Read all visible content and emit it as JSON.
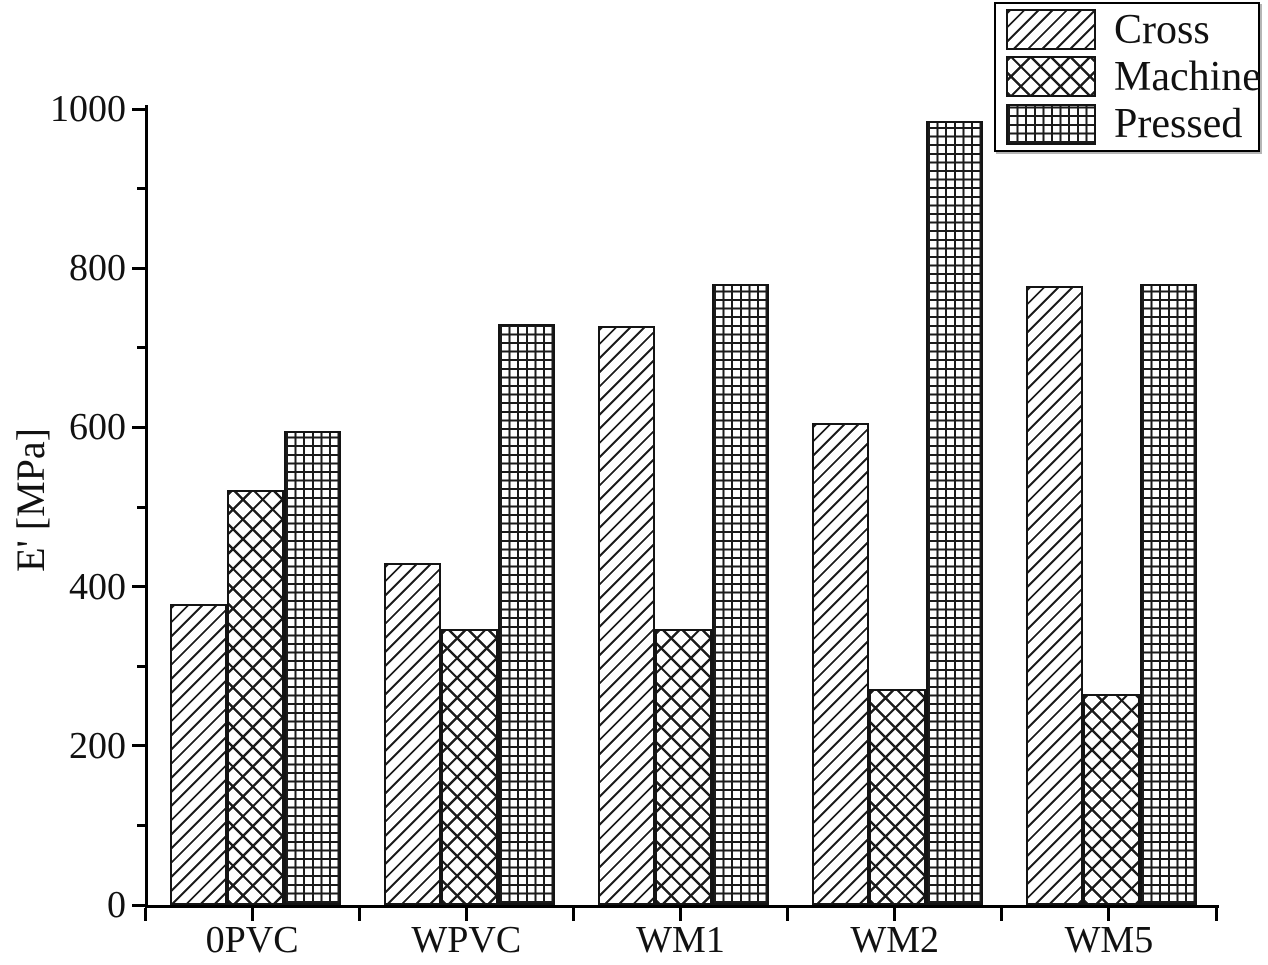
{
  "chart_data": {
    "type": "bar",
    "title": "",
    "categories": [
      "0PVC",
      "WPVC",
      "WM1",
      "WM2",
      "WM5"
    ],
    "series": [
      {
        "name": "Cross",
        "pattern": "diagonal-hatch",
        "values": [
          378,
          430,
          728,
          606,
          778
        ]
      },
      {
        "name": "Machine",
        "pattern": "crosshatch",
        "values": [
          522,
          347,
          347,
          272,
          265
        ]
      },
      {
        "name": "Pressed",
        "pattern": "grid",
        "values": [
          596,
          730,
          780,
          985,
          780
        ]
      }
    ],
    "xlabel": "",
    "ylabel": "E' [MPa]",
    "ylim": [
      0,
      1000
    ],
    "ytick_major": 200,
    "ytick_minor": 100,
    "legend_position": "top-right",
    "grid": false
  },
  "colors": {
    "foreground": "#000000",
    "background": "#ffffff",
    "bar_fill": "#ffffff",
    "bar_line": "#141414"
  }
}
